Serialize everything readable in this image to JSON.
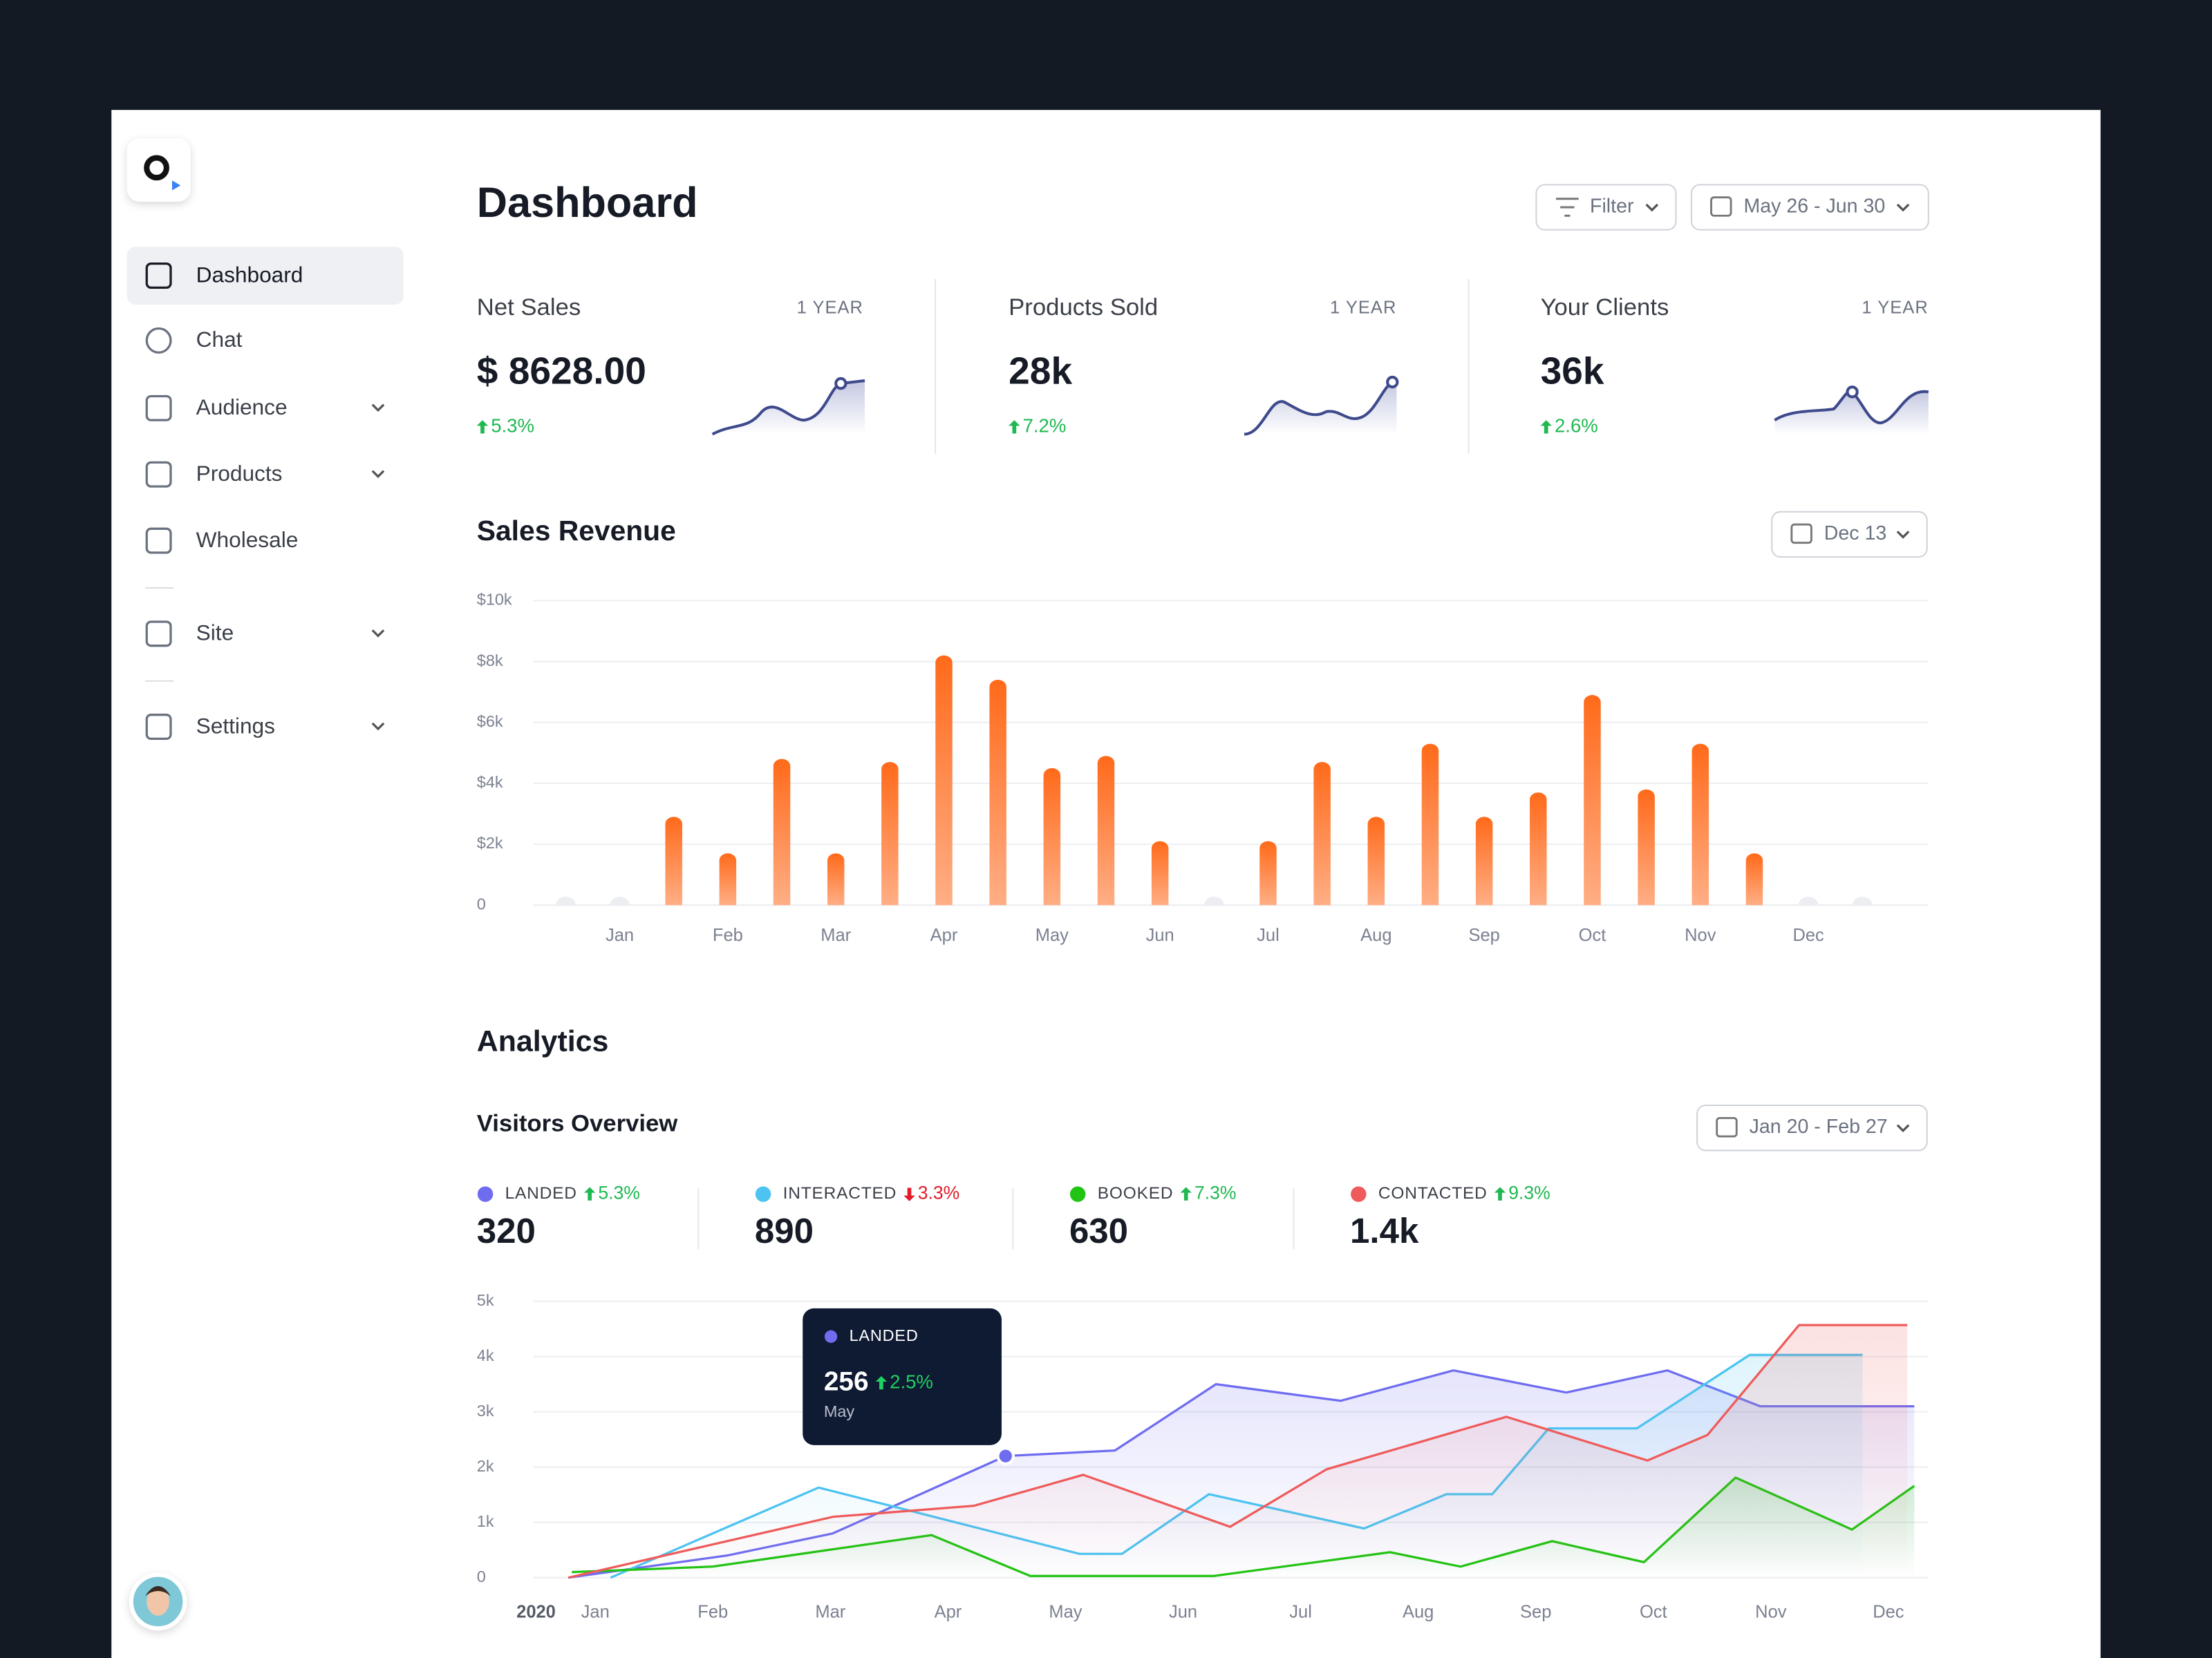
{
  "sidebar": {
    "items": [
      {
        "label": "Dashboard",
        "expandable": false
      },
      {
        "label": "Chat",
        "expandable": false
      },
      {
        "label": "Audience",
        "expandable": true
      },
      {
        "label": "Products",
        "expandable": true
      },
      {
        "label": "Wholesale",
        "expandable": false
      },
      {
        "label": "Site",
        "expandable": true
      },
      {
        "label": "Settings",
        "expandable": true
      }
    ]
  },
  "header": {
    "title": "Dashboard",
    "filter": "Filter",
    "date_range": "May 26 - Jun 30"
  },
  "stats": [
    {
      "label": "Net Sales",
      "period": "1 YEAR",
      "value": "$ 8628.00",
      "change": "5.3%"
    },
    {
      "label": "Products Sold",
      "period": "1 YEAR",
      "value": "28k",
      "change": "7.2%"
    },
    {
      "label": "Your Clients",
      "period": "1 YEAR",
      "value": "36k",
      "change": "2.6%"
    }
  ],
  "sales_date": "Dec 13",
  "analytics_heading": "Analytics",
  "visitors_date": "Jan 20 - Feb 27",
  "visitor_stats": [
    {
      "name": "LANDED",
      "color": "#6f6cf0",
      "trend": "up",
      "change": "5.3%",
      "value": "320"
    },
    {
      "name": "INTERACTED",
      "color": "#4cc3f0",
      "trend": "down",
      "change": "3.3%",
      "value": "890"
    },
    {
      "name": "BOOKED",
      "color": "#22c414",
      "trend": "up",
      "change": "7.3%",
      "value": "630"
    },
    {
      "name": "CONTACTED",
      "color": "#ef5b5b",
      "trend": "up",
      "change": "9.3%",
      "value": "1.4k"
    }
  ],
  "tooltip": {
    "series": "LANDED",
    "value": "256",
    "change": "2.5%",
    "label": "May"
  },
  "chart_data": [
    {
      "type": "bar",
      "title": "Sales Revenue",
      "categories": [
        null,
        "Jan",
        null,
        "Feb",
        null,
        "Mar",
        null,
        "Apr",
        null,
        "May",
        null,
        "Jun",
        null,
        "Jul",
        null,
        "Aug",
        null,
        "Sep",
        null,
        "Oct",
        null,
        "Nov",
        null,
        "Dec",
        null
      ],
      "values": [
        0,
        0,
        2900,
        1700,
        4800,
        1700,
        4700,
        8200,
        7400,
        4500,
        4900,
        2100,
        0,
        2100,
        4700,
        2900,
        5300,
        2900,
        3700,
        6900,
        3800,
        5300,
        1700,
        0,
        0
      ],
      "color": "#ff6a1a",
      "ylim": [
        0,
        10000
      ],
      "yticks": [
        0,
        {
          "value": 2000,
          "label": "$2k"
        },
        {
          "value": 4000,
          "label": "$4k"
        },
        {
          "value": 6000,
          "label": "$6k"
        },
        {
          "value": 8000,
          "label": "$8k"
        },
        {
          "value": 10000,
          "label": "$10k"
        }
      ],
      "grid": true
    },
    {
      "type": "line",
      "title": "Visitors Overview",
      "x_axis_year": "2020",
      "xlim": [
        -0.5,
        11.3
      ],
      "xticks": [
        {
          "value": 0,
          "label": "Jan"
        },
        {
          "value": 1,
          "label": "Feb"
        },
        {
          "value": 2,
          "label": "Mar"
        },
        {
          "value": 3,
          "label": "Apr"
        },
        {
          "value": 4,
          "label": "May"
        },
        {
          "value": 5,
          "label": "Jun"
        },
        {
          "value": 6,
          "label": "Jul"
        },
        {
          "value": 7,
          "label": "Aug"
        },
        {
          "value": 8,
          "label": "Sep"
        },
        {
          "value": 9,
          "label": "Oct"
        },
        {
          "value": 10,
          "label": "Nov"
        },
        {
          "value": 11,
          "label": "Dec"
        }
      ],
      "ylim": [
        0,
        5000
      ],
      "yticks": [
        0,
        {
          "value": 1000,
          "label": "1k"
        },
        {
          "value": 2000,
          "label": "2k"
        },
        {
          "value": 3000,
          "label": "3k"
        },
        {
          "value": 4000,
          "label": "4k"
        },
        {
          "value": 5000,
          "label": "5k"
        }
      ],
      "grid": true,
      "series": [
        {
          "name": "LANDED",
          "color": "#6f6cf0",
          "x": [
            -0.23,
            1.12,
            2.02,
            3.49,
            4.42,
            5.28,
            6.34,
            7.3,
            8.26,
            9.12,
            9.91,
            11.22
          ],
          "values": [
            0,
            400,
            800,
            2200,
            2300,
            3500,
            3200,
            3750,
            3350,
            3750,
            3100,
            3100
          ]
        },
        {
          "name": "INTERACTED",
          "color": "#4cc3f0",
          "x": [
            0.13,
            1.9,
            4.12,
            4.48,
            5.22,
            6.54,
            7.24,
            7.63,
            8.11,
            8.86,
            9.82,
            10.78
          ],
          "values": [
            0,
            1630,
            430,
            430,
            1510,
            890,
            1510,
            1510,
            2700,
            2700,
            4030,
            4030
          ]
        },
        {
          "name": "BOOKED",
          "color": "#22c414",
          "x": [
            -0.2,
            1.0,
            2.86,
            3.7,
            5.26,
            6.76,
            7.36,
            8.14,
            8.92,
            9.7,
            10.69,
            11.22
          ],
          "values": [
            100,
            200,
            770,
            30,
            30,
            460,
            200,
            660,
            280,
            1810,
            870,
            1660
          ]
        },
        {
          "name": "CONTACTED",
          "color": "#ef5b5b",
          "x": [
            -0.23,
            2.02,
            3.22,
            4.15,
            5.4,
            6.22,
            7.75,
            8.95,
            9.46,
            10.24,
            11.16
          ],
          "values": [
            0,
            1100,
            1300,
            1860,
            920,
            1960,
            2910,
            2120,
            2580,
            4570,
            4570
          ]
        }
      ]
    }
  ]
}
